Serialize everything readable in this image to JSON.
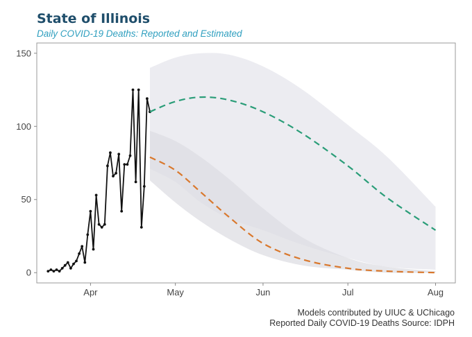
{
  "header": {
    "title": "State of Illinois",
    "subtitle": "Daily COVID-19 Deaths: Reported and Estimated"
  },
  "footer": {
    "line1": "Models contributed by UIUC & UChicago",
    "line2": "Reported Daily COVID-19 Deaths Source: IDPH"
  },
  "colors": {
    "reported": "#111111",
    "model_a": "#2a9d78",
    "model_b": "#d9782d",
    "band": "#ebebf0",
    "frame": "#999999"
  },
  "chart_data": {
    "type": "line",
    "title": "State of Illinois",
    "subtitle": "Daily COVID-19 Deaths: Reported and Estimated",
    "xlabel": "",
    "ylabel": "",
    "x_tick_labels": [
      "Apr",
      "May",
      "Jun",
      "Jul",
      "Aug"
    ],
    "x_tick_dates": [
      "2020-04-01",
      "2020-05-01",
      "2020-06-01",
      "2020-07-01",
      "2020-08-01"
    ],
    "xlim": [
      "2020-03-13",
      "2020-08-08"
    ],
    "y_ticks": [
      0,
      50,
      100,
      150
    ],
    "ylim": [
      -7,
      157
    ],
    "grid": false,
    "series": [
      {
        "style": "solid-markers",
        "x": [
          "2020-03-17",
          "2020-03-18",
          "2020-03-19",
          "2020-03-20",
          "2020-03-21",
          "2020-03-22",
          "2020-03-23",
          "2020-03-24",
          "2020-03-25",
          "2020-03-26",
          "2020-03-27",
          "2020-03-28",
          "2020-03-29",
          "2020-03-30",
          "2020-03-31",
          "2020-04-01",
          "2020-04-02",
          "2020-04-03",
          "2020-04-04",
          "2020-04-05",
          "2020-04-06",
          "2020-04-07",
          "2020-04-08",
          "2020-04-09",
          "2020-04-10",
          "2020-04-11",
          "2020-04-12",
          "2020-04-13",
          "2020-04-14",
          "2020-04-15",
          "2020-04-16",
          "2020-04-17",
          "2020-04-18",
          "2020-04-19",
          "2020-04-20",
          "2020-04-21",
          "2020-04-22"
        ],
        "values": [
          1,
          2,
          1,
          2,
          1,
          3,
          5,
          7,
          3,
          6,
          8,
          13,
          18,
          7,
          26,
          42,
          16,
          53,
          33,
          31,
          33,
          73,
          82,
          66,
          68,
          81,
          42,
          74,
          74,
          80,
          125,
          62,
          125,
          31,
          59,
          119,
          110
        ]
      },
      {
        "style": "dashed",
        "x": [
          "2020-04-22",
          "2020-05-01",
          "2020-05-10",
          "2020-05-20",
          "2020-06-01",
          "2020-06-15",
          "2020-07-01",
          "2020-07-15",
          "2020-08-01"
        ],
        "values": [
          110,
          117,
          120,
          118,
          110,
          95,
          73,
          51,
          29
        ]
      },
      {
        "style": "dashed",
        "x": [
          "2020-04-22",
          "2020-05-01",
          "2020-05-10",
          "2020-05-20",
          "2020-06-01",
          "2020-06-15",
          "2020-07-01",
          "2020-07-15",
          "2020-08-01"
        ],
        "values": [
          79,
          70,
          55,
          38,
          20,
          9,
          3,
          1,
          0
        ]
      }
    ],
    "bands": [
      {
        "x": [
          "2020-04-22",
          "2020-05-01",
          "2020-05-10",
          "2020-05-20",
          "2020-06-01",
          "2020-06-15",
          "2020-07-01",
          "2020-07-15",
          "2020-08-01"
        ],
        "upper": [
          140,
          147,
          150,
          149,
          141,
          125,
          101,
          79,
          45
        ],
        "lower": [
          71,
          62,
          48,
          37,
          29,
          19,
          10,
          4,
          2
        ]
      },
      {
        "x": [
          "2020-04-22",
          "2020-05-01",
          "2020-05-10",
          "2020-05-20",
          "2020-06-01",
          "2020-06-15",
          "2020-07-01",
          "2020-07-15",
          "2020-08-01"
        ],
        "upper": [
          97,
          90,
          79,
          64,
          44,
          24,
          10,
          4,
          1
        ],
        "lower": [
          63,
          48,
          35,
          23,
          12,
          5,
          2,
          0,
          0
        ]
      }
    ]
  }
}
